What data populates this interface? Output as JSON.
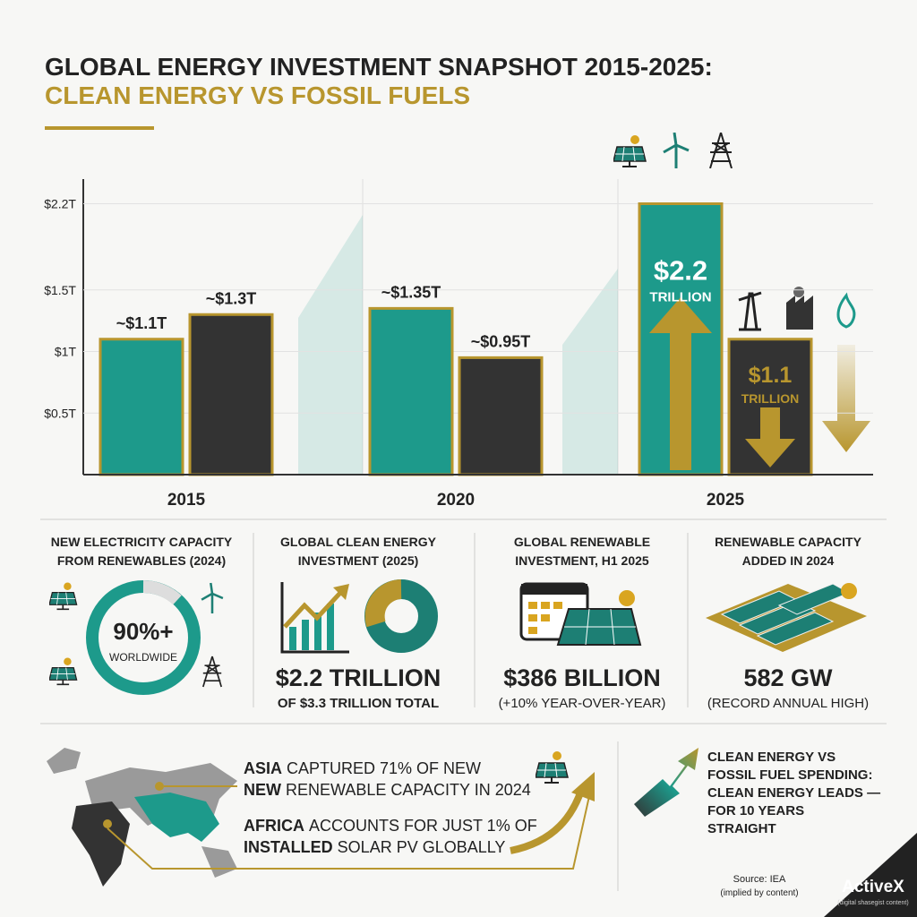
{
  "header": {
    "title": "GLOBAL ENERGY INVESTMENT SNAPSHOT 2015-2025:",
    "subtitle": "CLEAN ENERGY VS FOSSIL FUELS"
  },
  "chart_data": {
    "type": "bar",
    "categories": [
      "2015",
      "2020",
      "2025"
    ],
    "series": [
      {
        "color": "#1d9a8b",
        "values": [
          1.1,
          1.35,
          2.2
        ],
        "value_labels": [
          "~$1.1T",
          "~$1.35T",
          "$2.2"
        ]
      },
      {
        "color": "#333333",
        "values": [
          1.3,
          0.95,
          1.1
        ],
        "value_labels": [
          "~$1.3T",
          "~$0.95T",
          "$1.1"
        ]
      }
    ],
    "annotations": [
      "TRILLION",
      "TRILLION"
    ],
    "border_color": "#b8962e",
    "ylim": [
      0,
      2.4
    ],
    "yticks": [
      {
        "value": 0.5,
        "label": "$0.5T"
      },
      {
        "value": 1,
        "label": "$1T"
      },
      {
        "value": 1.5,
        "label": "$1.5T"
      },
      {
        "value": 2.2,
        "label": "$2.2T"
      }
    ],
    "grid": true
  },
  "stats": [
    {
      "title": [
        "NEW ELECTRICITY CAPACITY",
        "FROM RENEWABLES (2024)"
      ],
      "value": "90%+",
      "note": "WORLDWIDE"
    },
    {
      "title": [
        "GLOBAL CLEAN ENERGY",
        "INVESTMENT (2025)"
      ],
      "value": "$2.2 TRILLION",
      "note": "OF $3.3 TRILLION TOTAL"
    },
    {
      "title": [
        "GLOBAL RENEWABLE",
        "INVESTMENT, H1 2025"
      ],
      "value": "$386 BILLION",
      "note": "(+10% YEAR-OVER-YEAR)"
    },
    {
      "title": [
        "RENEWABLE CAPACITY",
        "ADDED IN 2024"
      ],
      "value": "582 GW",
      "note": "(RECORD ANNUAL HIGH)"
    }
  ],
  "regional": [
    {
      "bold": "ASIA",
      "text": "CAPTURED 71% OF NEW"
    },
    {
      "bold": "NEW",
      "text": "RENEWABLE CAPACITY IN 2024"
    },
    {
      "bold": "AFRICA",
      "text": "ACCOUNTS FOR JUST 1% OF"
    },
    {
      "bold": "INSTALLED",
      "text": "SOLAR PV GLOBALLY"
    }
  ],
  "trend": [
    "CLEAN ENERGY VS",
    "FOSSIL FUEL SPENDING:",
    "CLEAN ENERGY LEADS —",
    "FOR 10 YEARS",
    "STRAIGHT"
  ],
  "footer": {
    "source": "Source: IEA",
    "source_note": "(implied by content)",
    "brand": "ActiveX",
    "brand_note": "(digital shasegist content)"
  }
}
